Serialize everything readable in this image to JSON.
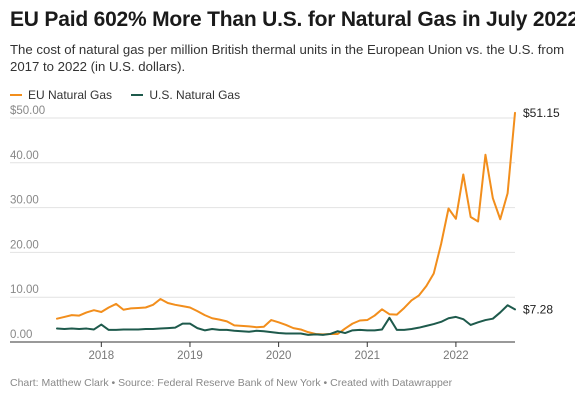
{
  "header": {
    "title": "EU Paid 602% More Than U.S. for Natural Gas in July 2022",
    "subtitle": "The cost of natural gas per million British thermal units in the European Union vs. the U.S. from 2017 to 2022 (in U.S. dollars)."
  },
  "footer": {
    "text": "Chart: Matthew Clark • Source: Federal Reserve Bank of New York • Created with Datawrapper"
  },
  "chart_data": {
    "type": "line",
    "title": "EU Paid 602% More Than U.S. for Natural Gas in July 2022",
    "subtitle": "The cost of natural gas per million British thermal units in the European Union vs. the U.S. from 2017 to 2022 (in U.S. dollars).",
    "xlabel": "",
    "ylabel": "",
    "x_start": "2017-07",
    "x_end": "2022-07",
    "x_ticks": [
      {
        "label": "2018",
        "value": 2018.0
      },
      {
        "label": "2019",
        "value": 2019.0
      },
      {
        "label": "2020",
        "value": 2020.0
      },
      {
        "label": "2021",
        "value": 2021.0
      },
      {
        "label": "2022",
        "value": 2022.0
      }
    ],
    "y_ticks": [
      "$50.00",
      "40.00",
      "30.00",
      "20.00",
      "10.00",
      "0.00"
    ],
    "y_tick_values": [
      50,
      40,
      30,
      20,
      10,
      0
    ],
    "ylim": [
      0,
      50
    ],
    "grid": true,
    "legend_placement": "top-left",
    "series": [
      {
        "name": "EU Natural Gas",
        "color": "#f28e1c",
        "end_label": "$51.15",
        "values": [
          5.2,
          5.6,
          6.0,
          5.9,
          6.6,
          7.1,
          6.7,
          7.7,
          8.5,
          7.2,
          7.5,
          7.6,
          7.7,
          8.3,
          9.6,
          8.7,
          8.3,
          8.0,
          7.7,
          6.9,
          6.0,
          5.3,
          5.0,
          4.6,
          3.7,
          3.6,
          3.5,
          3.3,
          3.4,
          4.9,
          4.4,
          3.8,
          3.1,
          2.8,
          2.2,
          1.8,
          1.7,
          1.8,
          1.8,
          3.0,
          4.1,
          4.8,
          4.9,
          5.9,
          7.3,
          6.2,
          6.1,
          7.6,
          9.3,
          10.4,
          12.5,
          15.3,
          21.9,
          29.8,
          27.5,
          37.4,
          27.9,
          26.9,
          41.8,
          32.1,
          27.4,
          33.2,
          51.15
        ]
      },
      {
        "name": "U.S. Natural Gas",
        "color": "#1e5a4c",
        "end_label": "$7.28",
        "values": [
          3.0,
          2.9,
          3.0,
          2.9,
          3.0,
          2.8,
          3.9,
          2.7,
          2.7,
          2.8,
          2.8,
          2.8,
          2.9,
          2.9,
          3.0,
          3.1,
          3.2,
          4.1,
          4.1,
          3.1,
          2.6,
          2.9,
          2.7,
          2.7,
          2.5,
          2.4,
          2.3,
          2.5,
          2.4,
          2.2,
          2.0,
          1.9,
          1.9,
          1.9,
          1.6,
          1.7,
          1.6,
          1.8,
          2.4,
          2.0,
          2.6,
          2.7,
          2.6,
          2.6,
          2.8,
          5.4,
          2.7,
          2.7,
          2.9,
          3.2,
          3.6,
          4.0,
          4.5,
          5.3,
          5.6,
          5.1,
          3.8,
          4.4,
          4.9,
          5.2,
          6.6,
          8.2,
          7.28
        ]
      }
    ]
  }
}
